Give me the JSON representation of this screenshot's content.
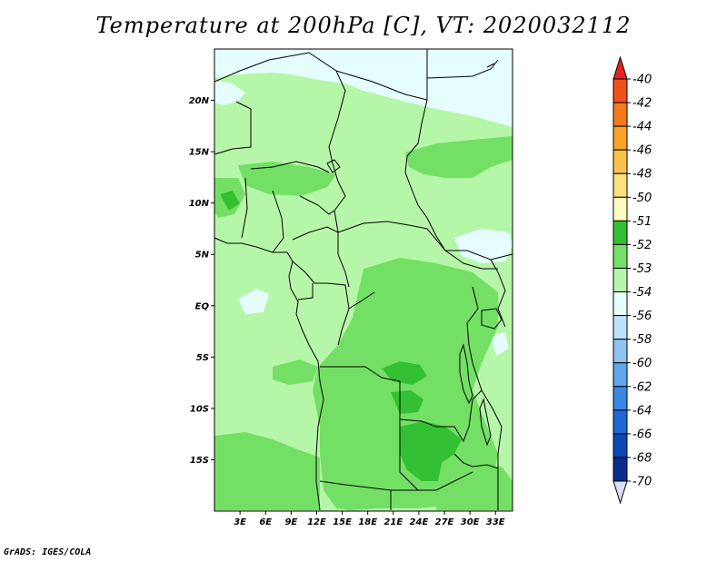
{
  "title": "Temperature at 200hPa [C], VT: 2020032112",
  "footer": "GrADS: IGES/COLA",
  "map": {
    "lon_range": [
      0,
      35
    ],
    "lat_range": [
      -20,
      25
    ],
    "lat_ticks": [
      {
        "value": 20,
        "label": "20N"
      },
      {
        "value": 15,
        "label": "15N"
      },
      {
        "value": 10,
        "label": "10N"
      },
      {
        "value": 5,
        "label": "5N"
      },
      {
        "value": 0,
        "label": "EQ"
      },
      {
        "value": -5,
        "label": "5S"
      },
      {
        "value": -10,
        "label": "10S"
      },
      {
        "value": -15,
        "label": "15S"
      }
    ],
    "lon_ticks": [
      {
        "value": 3,
        "label": "3E"
      },
      {
        "value": 6,
        "label": "6E"
      },
      {
        "value": 9,
        "label": "9E"
      },
      {
        "value": 12,
        "label": "12E"
      },
      {
        "value": 15,
        "label": "15E"
      },
      {
        "value": 18,
        "label": "18E"
      },
      {
        "value": 21,
        "label": "21E"
      },
      {
        "value": 24,
        "label": "24E"
      },
      {
        "value": 27,
        "label": "27E"
      },
      {
        "value": 30,
        "label": "30E"
      },
      {
        "value": 33,
        "label": "33E"
      }
    ]
  },
  "colorbar": {
    "labels": [
      "-40",
      "-42",
      "-44",
      "-46",
      "-48",
      "-50",
      "-51",
      "-52",
      "-53",
      "-54",
      "-56",
      "-58",
      "-60",
      "-62",
      "-64",
      "-66",
      "-68",
      "-70"
    ],
    "colors": [
      "#e8221f",
      "#f0501a",
      "#f47b1b",
      "#f9a226",
      "#fbc24b",
      "#fce07c",
      "#fefdbd",
      "#33c032",
      "#73e065",
      "#b6f6a8",
      "#e5fefd",
      "#b9e3fb",
      "#8ec3f5",
      "#5ea7ee",
      "#3888e3",
      "#1f67d7",
      "#0b48b6",
      "#0a2d8c",
      "#05116a"
    ],
    "under_color": "#dcdcf8"
  },
  "fields": {
    "background_color": "#b6f6a8",
    "colors": {
      "cold": "#e5fefd",
      "warm": "#73e065",
      "warmest": "#33c032"
    }
  }
}
